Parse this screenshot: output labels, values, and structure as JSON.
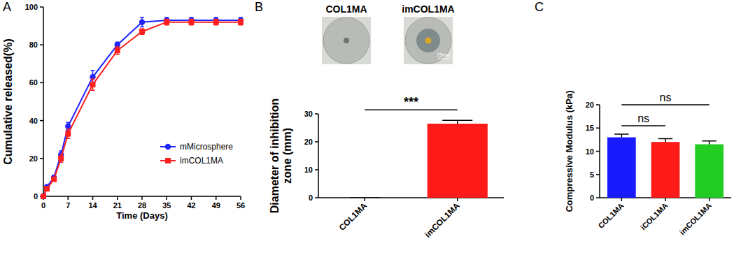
{
  "chart_data": [
    {
      "type": "line",
      "panel": "A",
      "x_label": "Time (Days)",
      "y_label": "Cumulative released(%)",
      "x": [
        0,
        1,
        3,
        5,
        7,
        14,
        21,
        28,
        35,
        42,
        49,
        56
      ],
      "xlim": [
        0,
        56
      ],
      "xticks": [
        0,
        7,
        14,
        21,
        28,
        35,
        42,
        49,
        56
      ],
      "ylim": [
        0,
        100
      ],
      "yticks": [
        0,
        20,
        40,
        60,
        80,
        100
      ],
      "legend": "right",
      "series": [
        {
          "name": "mMicrosphere",
          "color": "#1f24ff",
          "marker": "circle",
          "values": [
            0,
            5,
            10,
            22,
            37,
            63,
            80,
            92,
            93,
            93,
            93,
            93
          ],
          "errors": [
            0,
            1,
            1,
            2,
            2,
            3.5,
            1.5,
            2.5,
            1.5,
            1.5,
            1.5,
            1.5
          ]
        },
        {
          "name": "imCOL1MA",
          "color": "#ff1f1f",
          "marker": "square",
          "values": [
            0,
            4,
            9,
            20,
            33,
            59,
            77,
            87,
            92,
            92,
            92,
            92
          ],
          "errors": [
            0,
            1,
            1,
            2,
            2.5,
            3,
            2,
            1.5,
            1.5,
            1.5,
            1.5,
            1.5
          ]
        }
      ]
    },
    {
      "type": "bar",
      "panel": "B",
      "y_label": "Diameter of inhibition zone (mm)",
      "image_labels": [
        "COL1MA",
        "imCOL1MA"
      ],
      "scale_label": "25mm",
      "categories": [
        "COL1MA",
        "imCOL1MA"
      ],
      "values": [
        0,
        26.5
      ],
      "errors": [
        0,
        1.2
      ],
      "colors": [
        "#ff1a1a",
        "#ff1a1a"
      ],
      "ylim": [
        0,
        30
      ],
      "yticks": [
        0,
        10,
        20,
        30
      ],
      "annotations": [
        "***"
      ]
    },
    {
      "type": "bar",
      "panel": "C",
      "y_label": "Compressive Modulus (kPa)",
      "categories": [
        "COL1MA",
        "iCOL1MA",
        "imCOL1MA"
      ],
      "values": [
        13,
        12,
        11.5
      ],
      "errors": [
        0.7,
        0.7,
        0.7
      ],
      "colors": [
        "#1a1aff",
        "#ff1a1a",
        "#22cc22"
      ],
      "ylim": [
        0,
        20
      ],
      "yticks": [
        0,
        5,
        10,
        15,
        20
      ],
      "annotations": [
        "ns",
        "ns"
      ]
    }
  ]
}
